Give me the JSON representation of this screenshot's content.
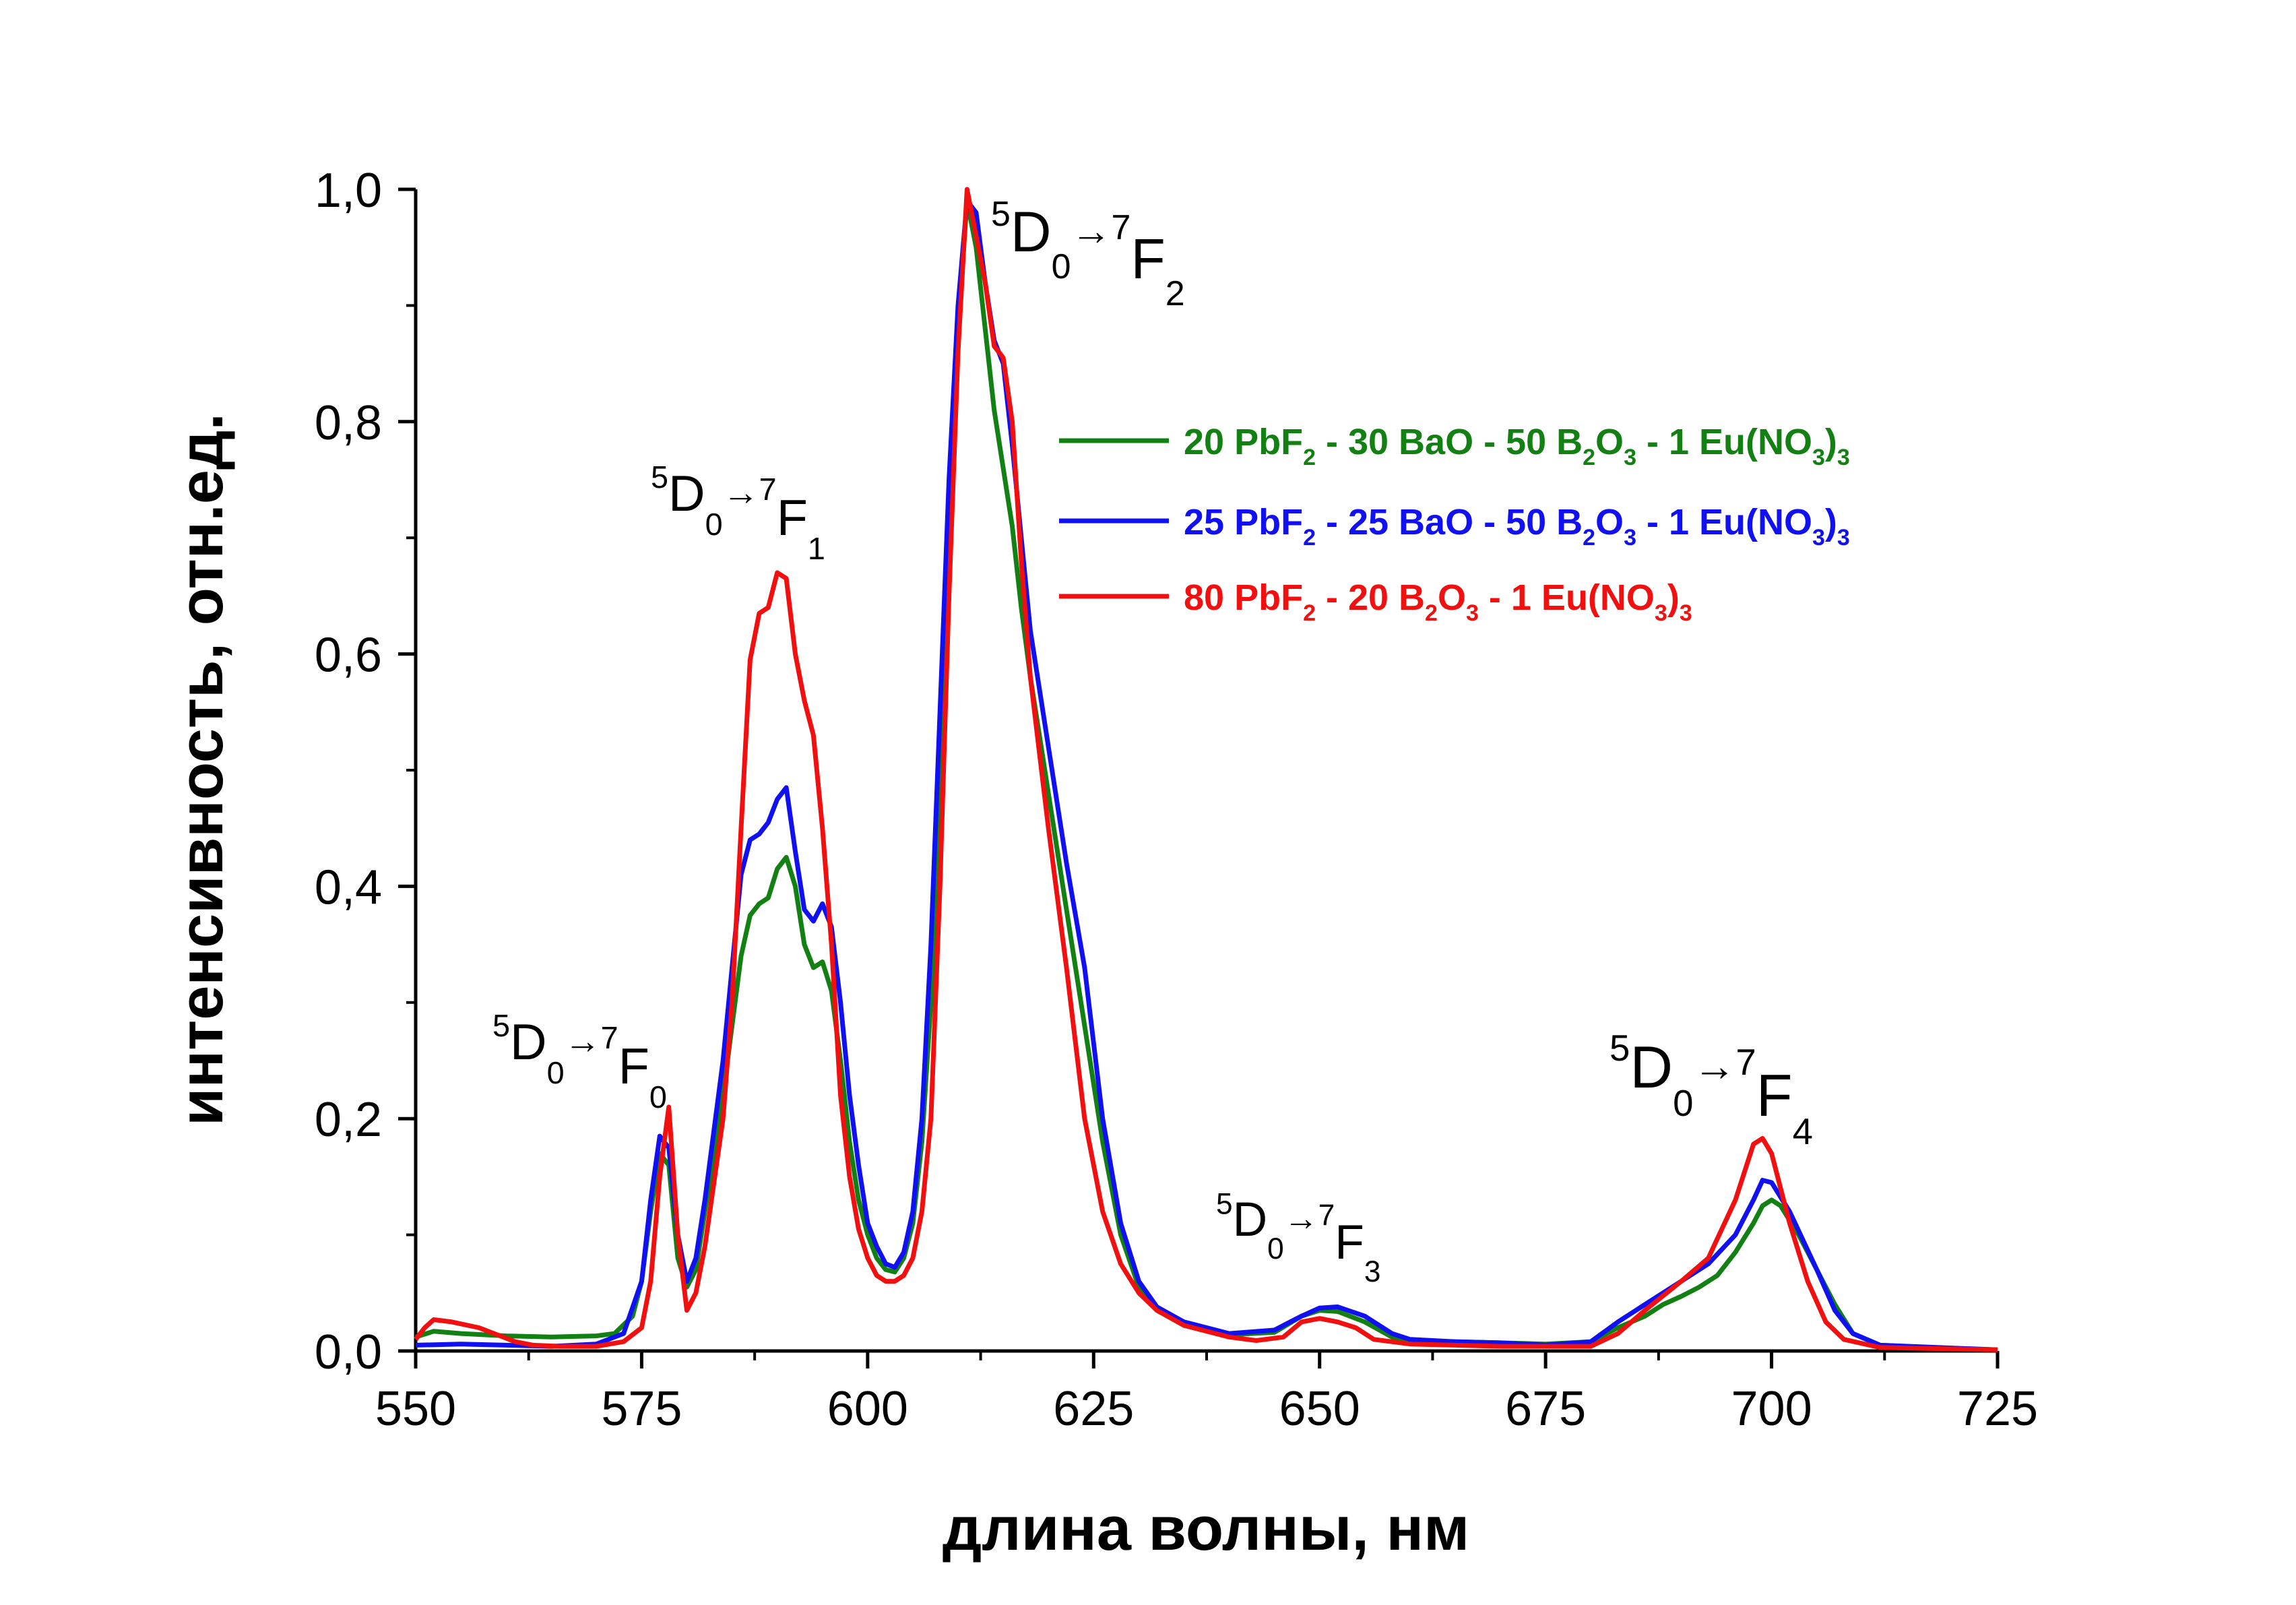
{
  "chart_data": {
    "type": "line",
    "title": "",
    "xlabel": "длина волны, нм",
    "ylabel": "интенсивность, отн.ед.",
    "xlim": [
      550,
      725
    ],
    "ylim": [
      0,
      1.0
    ],
    "xticks": [
      550,
      575,
      600,
      625,
      650,
      675,
      700,
      725
    ],
    "xtick_labels": [
      "550",
      "575",
      "600",
      "625",
      "650",
      "675",
      "700",
      "725"
    ],
    "yticks": [
      0,
      0.2,
      0.4,
      0.6,
      0.8,
      1.0
    ],
    "ytick_labels": [
      "0,0",
      "0,2",
      "0,4",
      "0,6",
      "0,8",
      "1,0"
    ],
    "grid": false,
    "legend_position": "top-right",
    "series": [
      {
        "name": "20 PbF2 - 30 BaO - 50 B2O3 - 1 Eu(NO3)3",
        "legend_segments": [
          [
            "20 PbF",
            ""
          ],
          [
            "2",
            "sub"
          ],
          [
            " - 30 BaO - 50 B",
            ""
          ],
          [
            "2",
            "sub"
          ],
          [
            "O",
            ""
          ],
          [
            "3",
            "sub"
          ],
          [
            " -  1 Eu(NO",
            ""
          ],
          [
            "3",
            "sub"
          ],
          [
            ")",
            ""
          ],
          [
            "3",
            "sub"
          ]
        ],
        "color": "#138013",
        "x": [
          550,
          552,
          555,
          560,
          565,
          570,
          572,
          574,
          575,
          576,
          577,
          578,
          579,
          580,
          581,
          582,
          584,
          585,
          586,
          587,
          588,
          589,
          590,
          591,
          592,
          593,
          594,
          595,
          596,
          597,
          598,
          599,
          600,
          601,
          602,
          603,
          604,
          605,
          606,
          607,
          608,
          609,
          610,
          611,
          612,
          613,
          614,
          615,
          616,
          617,
          618,
          620,
          622,
          624,
          626,
          628,
          630,
          632,
          635,
          640,
          645,
          648,
          650,
          652,
          655,
          658,
          660,
          665,
          670,
          675,
          680,
          683,
          686,
          688,
          690,
          692,
          694,
          696,
          698,
          699,
          700,
          701,
          703,
          705,
          707,
          709,
          712,
          720,
          725
        ],
        "y": [
          0.012,
          0.017,
          0.015,
          0.013,
          0.012,
          0.013,
          0.015,
          0.03,
          0.06,
          0.12,
          0.17,
          0.16,
          0.08,
          0.055,
          0.07,
          0.12,
          0.22,
          0.28,
          0.34,
          0.375,
          0.385,
          0.39,
          0.415,
          0.425,
          0.4,
          0.35,
          0.33,
          0.335,
          0.31,
          0.25,
          0.18,
          0.13,
          0.1,
          0.08,
          0.07,
          0.068,
          0.08,
          0.11,
          0.18,
          0.3,
          0.5,
          0.7,
          0.88,
          0.99,
          0.95,
          0.88,
          0.81,
          0.76,
          0.71,
          0.64,
          0.58,
          0.48,
          0.38,
          0.28,
          0.18,
          0.1,
          0.055,
          0.035,
          0.022,
          0.014,
          0.016,
          0.03,
          0.035,
          0.034,
          0.025,
          0.012,
          0.009,
          0.008,
          0.007,
          0.006,
          0.008,
          0.02,
          0.03,
          0.04,
          0.047,
          0.055,
          0.065,
          0.085,
          0.11,
          0.125,
          0.13,
          0.125,
          0.1,
          0.07,
          0.04,
          0.015,
          0.005,
          0.002,
          0.001
        ]
      },
      {
        "name": "25 PbF2 - 25 BaO - 50 B2O3 - 1 Eu(NO3)3",
        "legend_segments": [
          [
            "25 PbF",
            ""
          ],
          [
            "2",
            "sub"
          ],
          [
            " - 25 BaO - 50 B",
            ""
          ],
          [
            "2",
            "sub"
          ],
          [
            "O",
            ""
          ],
          [
            "3",
            "sub"
          ],
          [
            " -  1 Eu(NO",
            ""
          ],
          [
            "3",
            "sub"
          ],
          [
            ")",
            ""
          ],
          [
            "3",
            "sub"
          ]
        ],
        "color": "#1010f0",
        "x": [
          550,
          555,
          560,
          565,
          570,
          573,
          575,
          576,
          577,
          578,
          579,
          580,
          581,
          582,
          584,
          585,
          586,
          587,
          588,
          589,
          590,
          591,
          592,
          593,
          594,
          595,
          596,
          597,
          598,
          599,
          600,
          601,
          602,
          603,
          604,
          605,
          606,
          607,
          608,
          609,
          610,
          611,
          612,
          613,
          614,
          615,
          616,
          617,
          618,
          620,
          622,
          624,
          626,
          628,
          630,
          632,
          635,
          640,
          645,
          648,
          650,
          652,
          655,
          658,
          660,
          665,
          670,
          675,
          680,
          683,
          686,
          690,
          693,
          696,
          698,
          699,
          700,
          702,
          705,
          707,
          709,
          712,
          725
        ],
        "y": [
          0.005,
          0.006,
          0.005,
          0.004,
          0.006,
          0.015,
          0.06,
          0.13,
          0.185,
          0.175,
          0.1,
          0.06,
          0.08,
          0.13,
          0.25,
          0.33,
          0.41,
          0.44,
          0.445,
          0.455,
          0.475,
          0.485,
          0.43,
          0.38,
          0.37,
          0.385,
          0.365,
          0.3,
          0.22,
          0.16,
          0.11,
          0.09,
          0.075,
          0.072,
          0.085,
          0.12,
          0.2,
          0.35,
          0.55,
          0.75,
          0.9,
          0.99,
          0.98,
          0.92,
          0.87,
          0.85,
          0.78,
          0.7,
          0.62,
          0.52,
          0.42,
          0.33,
          0.2,
          0.11,
          0.06,
          0.038,
          0.025,
          0.015,
          0.018,
          0.03,
          0.037,
          0.038,
          0.03,
          0.015,
          0.01,
          0.008,
          0.007,
          0.005,
          0.008,
          0.025,
          0.04,
          0.06,
          0.075,
          0.1,
          0.13,
          0.147,
          0.145,
          0.12,
          0.07,
          0.035,
          0.015,
          0.005,
          0.001
        ]
      },
      {
        "name": "80 PbF2 - 20 B2O3 - 1 Eu(NO3)3",
        "legend_segments": [
          [
            " 80 PbF",
            ""
          ],
          [
            "2",
            "sub"
          ],
          [
            " - 20 B",
            ""
          ],
          [
            "2",
            "sub"
          ],
          [
            "O",
            ""
          ],
          [
            "3",
            "sub"
          ],
          [
            " -  1 Eu(NO",
            ""
          ],
          [
            "3",
            "sub"
          ],
          [
            ")",
            ""
          ],
          [
            "3",
            "sub"
          ]
        ],
        "color": "#f01010",
        "x": [
          550,
          551,
          552,
          554,
          557,
          559,
          561,
          563,
          566,
          570,
          573,
          575,
          576,
          577,
          578,
          579,
          580,
          581,
          582,
          584,
          585,
          586,
          587,
          588,
          589,
          590,
          591,
          592,
          593,
          594,
          595,
          596,
          597,
          598,
          599,
          600,
          601,
          602,
          603,
          604,
          605,
          606,
          607,
          608,
          609,
          610,
          611,
          612,
          613,
          614,
          615,
          616,
          617,
          618,
          620,
          622,
          624,
          626,
          628,
          630,
          632,
          635,
          640,
          643,
          646,
          648,
          650,
          652,
          654,
          656,
          660,
          670,
          680,
          683,
          686,
          690,
          693,
          696,
          698,
          699,
          700,
          702,
          704,
          706,
          708,
          712,
          725
        ],
        "y": [
          0.01,
          0.02,
          0.027,
          0.025,
          0.02,
          0.014,
          0.008,
          0.005,
          0.004,
          0.004,
          0.008,
          0.02,
          0.06,
          0.15,
          0.21,
          0.1,
          0.035,
          0.05,
          0.09,
          0.2,
          0.3,
          0.45,
          0.595,
          0.635,
          0.64,
          0.67,
          0.665,
          0.6,
          0.56,
          0.53,
          0.45,
          0.35,
          0.22,
          0.15,
          0.105,
          0.08,
          0.065,
          0.06,
          0.06,
          0.065,
          0.08,
          0.12,
          0.2,
          0.4,
          0.65,
          0.86,
          1.0,
          0.96,
          0.92,
          0.865,
          0.855,
          0.8,
          0.68,
          0.58,
          0.45,
          0.33,
          0.2,
          0.12,
          0.075,
          0.05,
          0.035,
          0.022,
          0.012,
          0.009,
          0.012,
          0.025,
          0.028,
          0.025,
          0.02,
          0.01,
          0.006,
          0.004,
          0.004,
          0.015,
          0.035,
          0.06,
          0.08,
          0.13,
          0.178,
          0.183,
          0.17,
          0.11,
          0.06,
          0.025,
          0.01,
          0.003,
          0.001
        ]
      }
    ],
    "annotations": [
      {
        "id": "f2",
        "text": "5D0→7F2",
        "parts": [
          "5",
          "D",
          "0",
          "7",
          "F",
          "2"
        ]
      },
      {
        "id": "f1",
        "text": "5D0→7F1",
        "parts": [
          "5",
          "D",
          "0",
          "7",
          "F",
          "1"
        ]
      },
      {
        "id": "f0",
        "text": "5D0→7F0",
        "parts": [
          "5",
          "D",
          "0",
          "7",
          "F",
          "0"
        ]
      },
      {
        "id": "f3",
        "text": "5D0→7F3",
        "parts": [
          "5",
          "D",
          "0",
          "7",
          "F",
          "3"
        ]
      },
      {
        "id": "f4",
        "text": "5D0→7F4",
        "parts": [
          "5",
          "D",
          "0",
          "7",
          "F",
          "4"
        ]
      }
    ]
  }
}
